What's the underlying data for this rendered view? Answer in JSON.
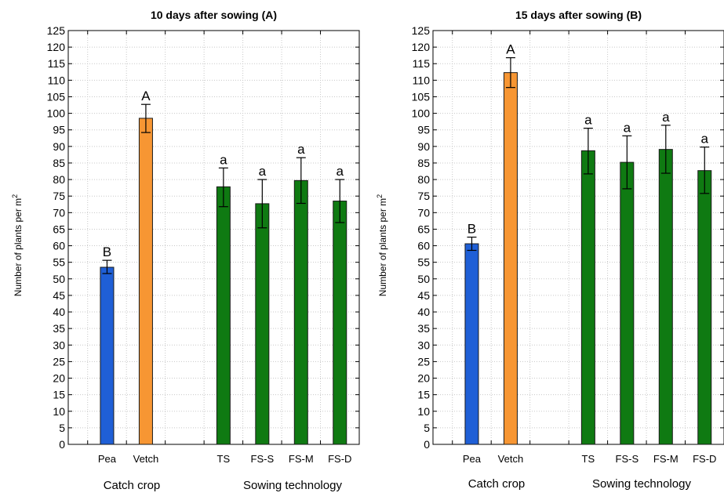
{
  "chart_data": [
    {
      "type": "bar",
      "title": "10 days after sowing (A)",
      "ylabel": "Number of plants per m",
      "ylabel_sup": "2",
      "ylim": [
        0,
        125
      ],
      "ytick_step": 5,
      "grid": true,
      "categories": [
        "Pea",
        "Vetch",
        "TS",
        "FS-S",
        "FS-M",
        "FS-D"
      ],
      "values": [
        53.5,
        98.5,
        77.8,
        72.7,
        79.7,
        73.5
      ],
      "err_low": [
        51.6,
        94.2,
        71.8,
        65.4,
        72.8,
        67.0
      ],
      "err_high": [
        55.6,
        102.7,
        83.5,
        80.0,
        86.6,
        80.0
      ],
      "letters": [
        "B",
        "A",
        "a",
        "a",
        "a",
        "a"
      ],
      "colors": [
        "#1f5fd6",
        "#f79633",
        "#0f7a12",
        "#0f7a12",
        "#0f7a12",
        "#0f7a12"
      ],
      "groups": [
        "Catch crop",
        "Sowing technology"
      ]
    },
    {
      "type": "bar",
      "title": "15 days after sowing (B)",
      "ylabel": "Number of plants per m",
      "ylabel_sup": "2",
      "ylim": [
        0,
        125
      ],
      "ytick_step": 5,
      "grid": true,
      "categories": [
        "Pea",
        "Vetch",
        "TS",
        "FS-S",
        "FS-M",
        "FS-D"
      ],
      "values": [
        60.6,
        112.3,
        88.7,
        85.2,
        89.1,
        82.7
      ],
      "err_low": [
        58.6,
        107.8,
        81.7,
        77.2,
        81.9,
        75.8
      ],
      "err_high": [
        62.6,
        116.8,
        95.5,
        93.2,
        96.4,
        89.8
      ],
      "letters": [
        "B",
        "A",
        "a",
        "a",
        "a",
        "a"
      ],
      "colors": [
        "#1f5fd6",
        "#f79633",
        "#0f7a12",
        "#0f7a12",
        "#0f7a12",
        "#0f7a12"
      ],
      "groups": [
        "Catch crop",
        "Sowing technology"
      ]
    }
  ]
}
